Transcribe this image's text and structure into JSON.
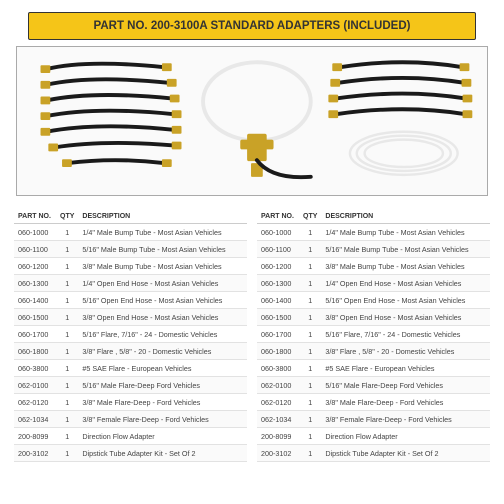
{
  "header": {
    "title": "PART NO. 200-3100A STANDARD ADAPTERS (INCLUDED)",
    "bg_color": "#f5c518",
    "text_color": "#333333"
  },
  "table_headers": {
    "part": "PART NO.",
    "qty": "QTY",
    "desc": "DESCRIPTION"
  },
  "rows": [
    {
      "part": "060-1000",
      "qty": "1",
      "desc": "1/4\" Male Bump Tube - Most Asian Vehicles"
    },
    {
      "part": "060-1100",
      "qty": "1",
      "desc": "5/16\" Male Bump Tube - Most Asian Vehicles"
    },
    {
      "part": "060-1200",
      "qty": "1",
      "desc": "3/8\" Male Bump Tube - Most Asian Vehicles"
    },
    {
      "part": "060-1300",
      "qty": "1",
      "desc": "1/4\" Open End Hose - Most Asian Vehicles"
    },
    {
      "part": "060-1400",
      "qty": "1",
      "desc": "5/16\" Open End Hose - Most Asian Vehicles"
    },
    {
      "part": "060-1500",
      "qty": "1",
      "desc": "3/8\" Open End Hose - Most Asian Vehicles"
    },
    {
      "part": "060-1700",
      "qty": "1",
      "desc": "5/16\" Flare, 7/16\" - 24 - Domestic Vehicles"
    },
    {
      "part": "060-1800",
      "qty": "1",
      "desc": "3/8\" Flare , 5/8\" - 20 - Domestic Vehicles"
    },
    {
      "part": "060-3800",
      "qty": "1",
      "desc": "#5 SAE Flare - European Vehicles"
    },
    {
      "part": "062-0100",
      "qty": "1",
      "desc": "5/16\" Male Flare-Deep Ford Vehicles"
    },
    {
      "part": "062-0120",
      "qty": "1",
      "desc": "3/8\" Male Flare-Deep - Ford Vehicles"
    },
    {
      "part": "062-1034",
      "qty": "1",
      "desc": "3/8\" Female Flare-Deep - Ford Vehicles"
    },
    {
      "part": "200-8099",
      "qty": "1",
      "desc": "Direction Flow Adapter"
    },
    {
      "part": "200-3102",
      "qty": "1",
      "desc": "Dipstick Tube Adapter Kit - Set Of 2"
    }
  ],
  "image": {
    "hose_color": "#1a1a1a",
    "fitting_color": "#c9a227",
    "tube_color": "#e8e8e8",
    "bg": "#fafafa"
  }
}
